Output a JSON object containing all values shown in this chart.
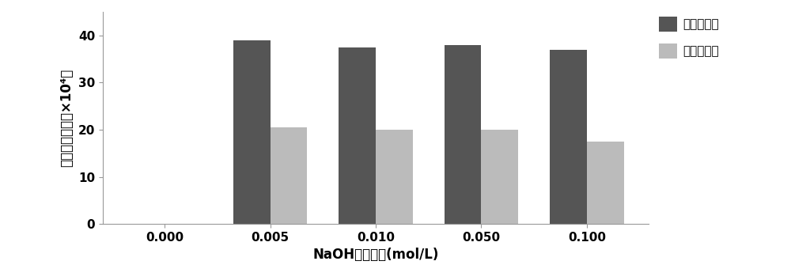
{
  "categories": [
    "0.000",
    "0.005",
    "0.010",
    "0.050",
    "0.100"
  ],
  "series1_name": "甲磺酸甲酯",
  "series2_name": "甲磺酸乙酯",
  "series1_values": [
    0,
    39.0,
    37.5,
    38.0,
    37.0
  ],
  "series2_values": [
    0,
    20.5,
    20.0,
    20.0,
    17.5
  ],
  "color1": "#555555",
  "color2": "#bbbbbb",
  "xlabel": "NaOH溶液浓度(mol/L)",
  "ylabel": "衍生物峰面积（×10⁴）",
  "ylim": [
    0,
    45
  ],
  "yticks": [
    0,
    10,
    20,
    30,
    40
  ],
  "bar_width": 0.35,
  "background_color": "#ffffff",
  "legend_fontsize": 11,
  "axis_fontsize": 12,
  "tick_fontsize": 11,
  "figsize": [
    10.0,
    3.54
  ],
  "dpi": 100
}
